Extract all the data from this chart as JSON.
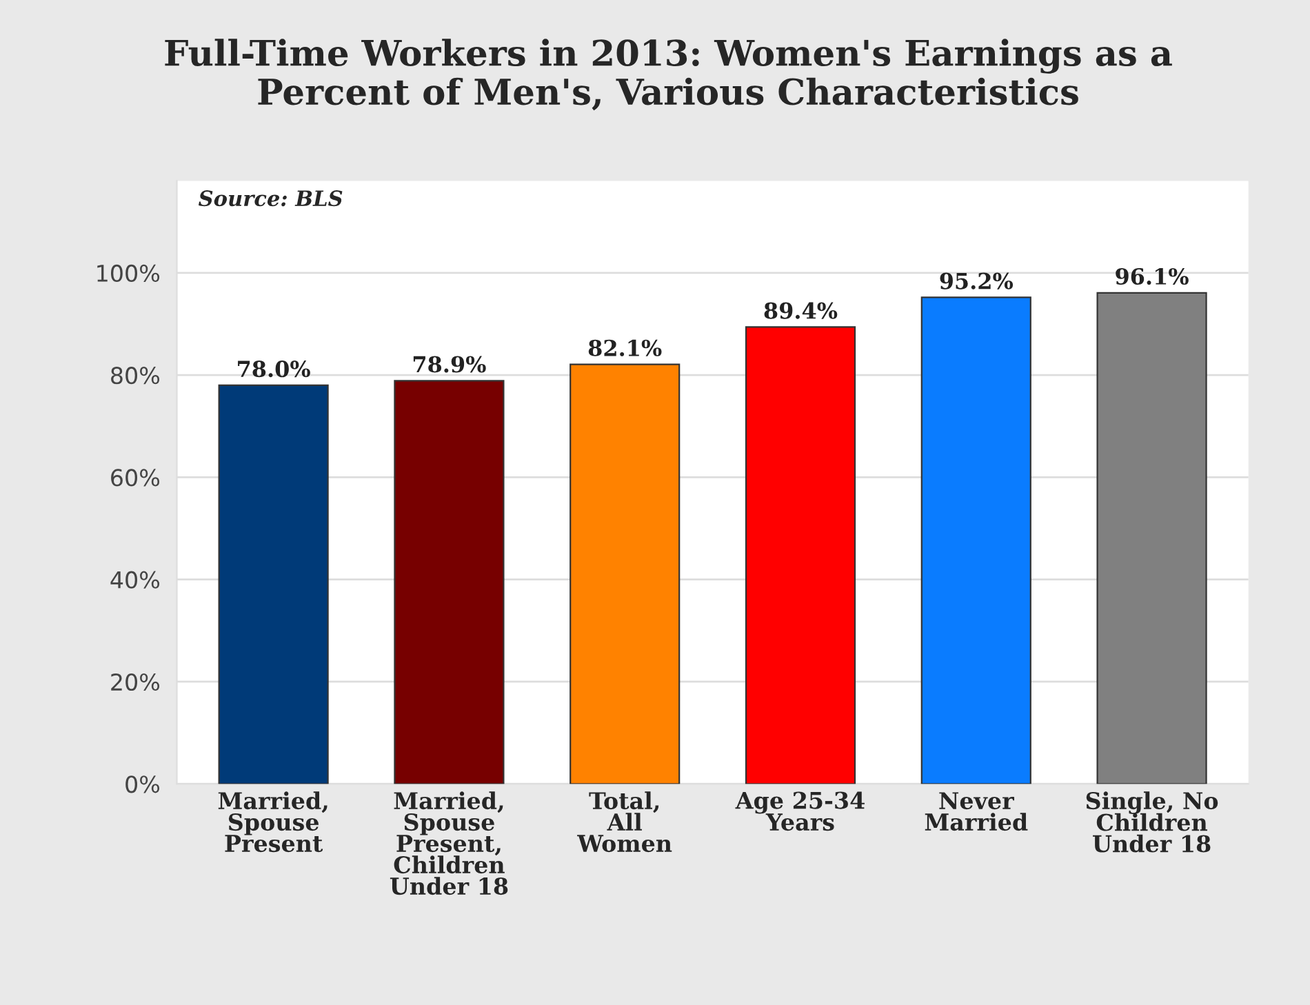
{
  "chart_data": {
    "type": "bar",
    "title": "Full-Time Workers in 2013: Women's Earnings as a\nPercent of Men's, Various Characteristics",
    "categories": [
      "Married,\nSpouse\nPresent",
      "Married,\nSpouse\nPresent,\nChildren\nUnder 18",
      "Total,\nAll\nWomen",
      "Age 25-34\nYears",
      "Never\nMarried",
      "Single, No\nChildren\nUnder 18"
    ],
    "values": [
      78.0,
      78.9,
      82.1,
      89.4,
      95.2,
      96.1
    ],
    "colors": [
      "#003a78",
      "#770000",
      "#ff8200",
      "#ff0000",
      "#0a7cff",
      "#808080"
    ],
    "value_labels": [
      "78.0%",
      "78.9%",
      "82.1%",
      "89.4%",
      "95.2%",
      "96.1%"
    ],
    "ylim": [
      0,
      118
    ],
    "yticks": [
      {
        "value": 0,
        "label": "0%"
      },
      {
        "value": 20,
        "label": "20%"
      },
      {
        "value": 40,
        "label": "40%"
      },
      {
        "value": 60,
        "label": "60%"
      },
      {
        "value": 80,
        "label": "80%"
      },
      {
        "value": 100,
        "label": "100%"
      }
    ],
    "grid": "y",
    "annotations": [
      "Source: BLS"
    ]
  }
}
